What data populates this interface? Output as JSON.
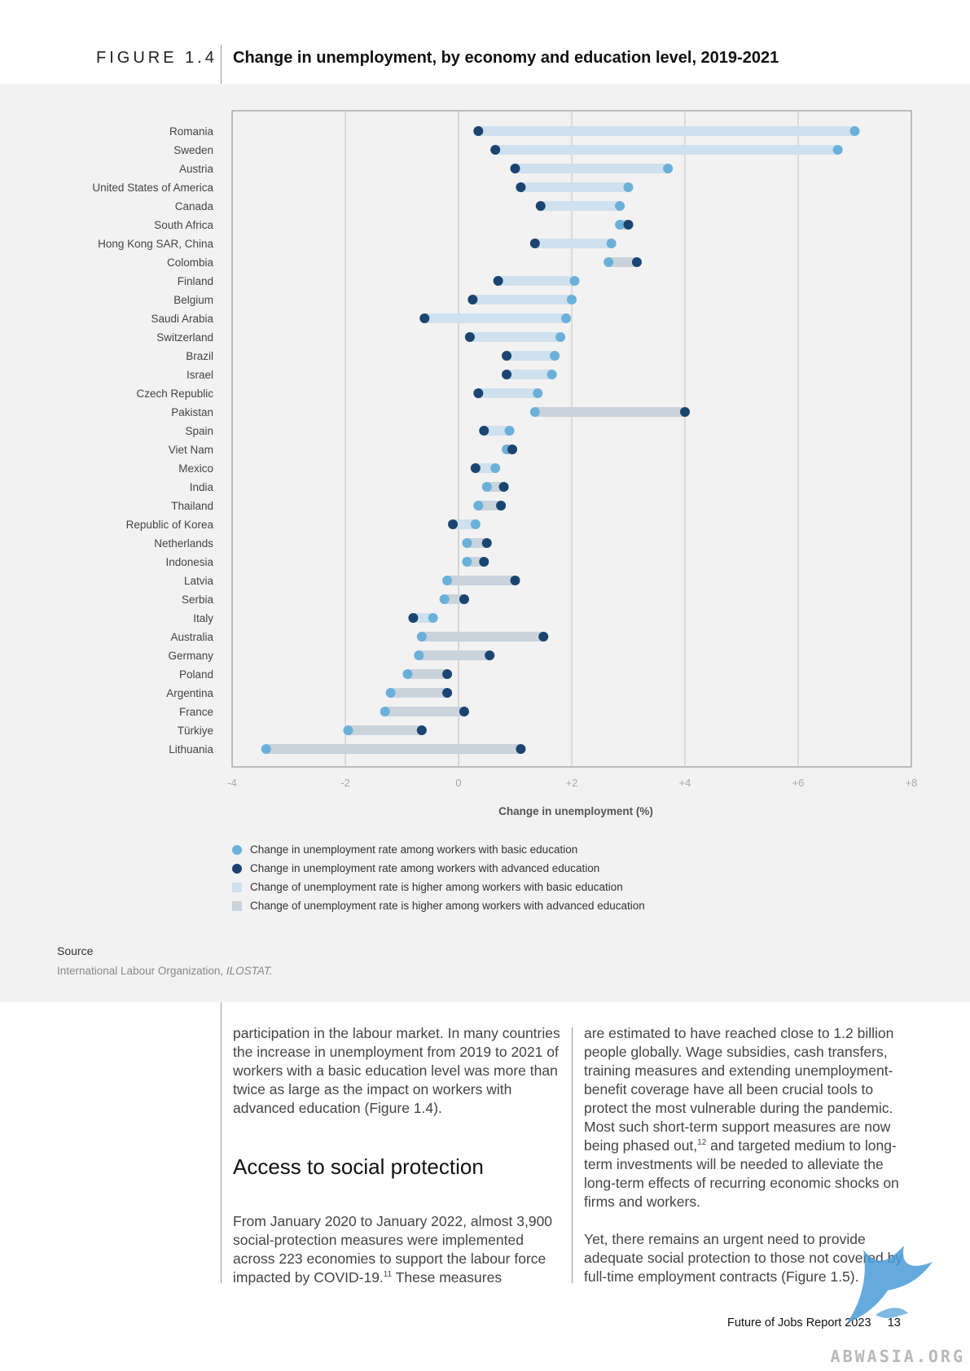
{
  "header": {
    "figure_label": "FIGURE 1.4",
    "title": "Change in unemployment, by economy and education level, 2019-2021"
  },
  "chart_data": {
    "type": "dumbbell",
    "xlabel": "Change in unemployment (%)",
    "xlim": [
      -4,
      8
    ],
    "xticks": [
      "-4",
      "-2",
      "0",
      "+2",
      "+4",
      "+6",
      "+8"
    ],
    "xtick_values": [
      -4,
      -2,
      0,
      2,
      4,
      6,
      8
    ],
    "grid": "vertical",
    "colors": {
      "basic": "#6bb0d9",
      "advanced": "#1b4470",
      "basic_higher": "#cfe1ee",
      "advanced_higher": "#c9d3dc"
    },
    "legend": [
      {
        "label": "Change in unemployment rate among workers with basic education",
        "kind": "dot",
        "color": "#6bb0d9"
      },
      {
        "label": "Change in unemployment rate among workers with advanced education",
        "kind": "dot",
        "color": "#1b4470"
      },
      {
        "label": "Change of unemployment rate is higher among workers with basic education",
        "kind": "square",
        "color": "#cfe1ee"
      },
      {
        "label": "Change of unemployment rate is higher among workers with advanced education",
        "kind": "square",
        "color": "#c9d3dc"
      }
    ],
    "rows": [
      {
        "economy": "Romania",
        "basic": 7.0,
        "advanced": 0.35
      },
      {
        "economy": "Sweden",
        "basic": 6.7,
        "advanced": 0.65
      },
      {
        "economy": "Austria",
        "basic": 3.7,
        "advanced": 1.0
      },
      {
        "economy": "United States of America",
        "basic": 3.0,
        "advanced": 1.1
      },
      {
        "economy": "Canada",
        "basic": 2.85,
        "advanced": 1.45
      },
      {
        "economy": "South Africa",
        "basic": 2.85,
        "advanced": 3.0
      },
      {
        "economy": "Hong Kong SAR, China",
        "basic": 2.7,
        "advanced": 1.35
      },
      {
        "economy": "Colombia",
        "basic": 2.65,
        "advanced": 3.15
      },
      {
        "economy": "Finland",
        "basic": 2.05,
        "advanced": 0.7
      },
      {
        "economy": "Belgium",
        "basic": 2.0,
        "advanced": 0.25
      },
      {
        "economy": "Saudi Arabia",
        "basic": 1.9,
        "advanced": -0.6
      },
      {
        "economy": "Switzerland",
        "basic": 1.8,
        "advanced": 0.2
      },
      {
        "economy": "Brazil",
        "basic": 1.7,
        "advanced": 0.85
      },
      {
        "economy": "Israel",
        "basic": 1.65,
        "advanced": 0.85
      },
      {
        "economy": "Czech Republic",
        "basic": 1.4,
        "advanced": 0.35
      },
      {
        "economy": "Pakistan",
        "basic": 1.35,
        "advanced": 4.0
      },
      {
        "economy": "Spain",
        "basic": 0.9,
        "advanced": 0.45
      },
      {
        "economy": "Viet Nam",
        "basic": 0.85,
        "advanced": 0.95
      },
      {
        "economy": "Mexico",
        "basic": 0.65,
        "advanced": 0.3
      },
      {
        "economy": "India",
        "basic": 0.5,
        "advanced": 0.8
      },
      {
        "economy": "Thailand",
        "basic": 0.35,
        "advanced": 0.75
      },
      {
        "economy": "Republic of Korea",
        "basic": 0.3,
        "advanced": -0.1
      },
      {
        "economy": "Netherlands",
        "basic": 0.15,
        "advanced": 0.5
      },
      {
        "economy": "Indonesia",
        "basic": 0.15,
        "advanced": 0.45
      },
      {
        "economy": "Latvia",
        "basic": -0.2,
        "advanced": 1.0
      },
      {
        "economy": "Serbia",
        "basic": -0.25,
        "advanced": 0.1
      },
      {
        "economy": "Italy",
        "basic": -0.45,
        "advanced": -0.8
      },
      {
        "economy": "Australia",
        "basic": -0.65,
        "advanced": 1.5
      },
      {
        "economy": "Germany",
        "basic": -0.7,
        "advanced": 0.55
      },
      {
        "economy": "Poland",
        "basic": -0.9,
        "advanced": -0.2
      },
      {
        "economy": "Argentina",
        "basic": -1.2,
        "advanced": -0.2
      },
      {
        "economy": "France",
        "basic": -1.3,
        "advanced": 0.1
      },
      {
        "economy": "Türkiye",
        "basic": -1.95,
        "advanced": -0.65
      },
      {
        "economy": "Lithuania",
        "basic": -3.4,
        "advanced": 1.1
      }
    ]
  },
  "source": {
    "label": "Source",
    "text": "International Labour Organization, ",
    "text_italic": "ILOSTAT."
  },
  "body": {
    "col1_p1": "participation in the labour market. In many countries the increase in unemployment from 2019 to 2021 of workers with a basic education level was more than twice as large as the impact on workers with advanced education (Figure 1.4).",
    "section_heading": "Access to social protection",
    "col1_p2": "From January 2020 to January 2022, almost 3,900 social-protection measures were implemented across 223 economies to support the labour force impacted by COVID-19.",
    "col1_p2_sup": "11",
    "col1_p2_end": " These measures",
    "col2_p1a": "are estimated to have reached close to 1.2 billion people globally. Wage subsidies, cash transfers, training measures and extending unemployment-benefit coverage have all been crucial tools to protect the most vulnerable during the pandemic. Most such short-term support measures are now being phased out,",
    "col2_p1_sup": "12",
    "col2_p1b": " and targeted medium to long-term investments will be needed to alleviate the long-term effects of recurring economic shocks on firms and workers.",
    "col2_p2": "Yet, there remains an urgent need to provide adequate social protection to those not covered by full-time employment contracts (Figure 1.5)."
  },
  "footer": {
    "report": "Future of Jobs Report 2023",
    "page": "13",
    "watermark": "ABWASIA.ORG"
  }
}
